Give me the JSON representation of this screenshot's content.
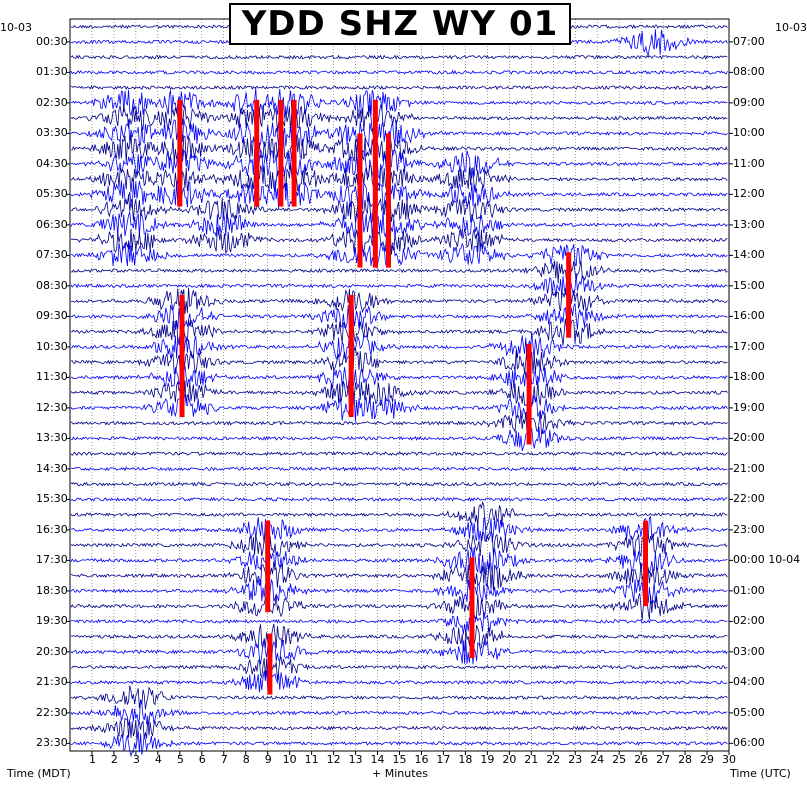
{
  "chart_data": {
    "type": "seismogram",
    "title": "YDD SHZ WY 01",
    "left_date": "10-03",
    "right_date_start": "10-03",
    "right_date_next": "10-04",
    "left_axis_label": "Time (MDT)",
    "right_axis_label": "Time (UTC)",
    "x_axis_label": "+ Minutes",
    "x_range_minutes": [
      0,
      30
    ],
    "x_ticks": [
      "1",
      "2",
      "3",
      "4",
      "5",
      "6",
      "7",
      "8",
      "9",
      "10",
      "11",
      "12",
      "13",
      "14",
      "15",
      "16",
      "17",
      "18",
      "19",
      "20",
      "21",
      "22",
      "23",
      "24",
      "25",
      "26",
      "27",
      "28",
      "29",
      "30"
    ],
    "trace_count": 48,
    "trace_colors": [
      "#00008b",
      "#ff0000",
      "#0000ff"
    ],
    "left_times": [
      "00:30",
      "01:30",
      "02:30",
      "03:30",
      "04:30",
      "05:30",
      "06:30",
      "07:30",
      "08:30",
      "09:30",
      "10:30",
      "11:30",
      "12:30",
      "13:30",
      "14:30",
      "15:30",
      "16:30",
      "17:30",
      "18:30",
      "19:30",
      "20:30",
      "21:30",
      "22:30",
      "23:30"
    ],
    "right_times": [
      "07:00",
      "08:00",
      "09:00",
      "10:00",
      "11:00",
      "12:00",
      "13:00",
      "14:00",
      "15:00",
      "16:00",
      "17:00",
      "18:00",
      "19:00",
      "20:00",
      "21:00",
      "22:00",
      "23:00",
      "00:00 10-04",
      "01:00",
      "02:00",
      "03:00",
      "04:00",
      "05:00",
      "06:00"
    ],
    "events": [
      {
        "minute": 2.7,
        "hour_start": 2.5,
        "hour_end": 7.6,
        "color": "#0000ff"
      },
      {
        "minute": 5.0,
        "hour_start": 2.4,
        "hour_end": 5.9,
        "color": "#ff0000"
      },
      {
        "minute": 8.5,
        "hour_start": 2.4,
        "hour_end": 5.9,
        "color": "#ff0000"
      },
      {
        "minute": 9.6,
        "hour_start": 2.4,
        "hour_end": 5.9,
        "color": "#ff0000"
      },
      {
        "minute": 10.2,
        "hour_start": 2.4,
        "hour_end": 5.9,
        "color": "#ff0000"
      },
      {
        "minute": 7.0,
        "hour_start": 5.7,
        "hour_end": 7.3,
        "color": "#0000ff"
      },
      {
        "minute": 13.2,
        "hour_start": 3.5,
        "hour_end": 7.9,
        "color": "#ff0000"
      },
      {
        "minute": 13.9,
        "hour_start": 2.4,
        "hour_end": 7.9,
        "color": "#ff0000"
      },
      {
        "minute": 14.5,
        "hour_start": 3.5,
        "hour_end": 7.9,
        "color": "#ff0000"
      },
      {
        "minute": 13.6,
        "hour_start": 5.5,
        "hour_end": 7.9,
        "color": "#0000ff"
      },
      {
        "minute": 18.2,
        "hour_start": 4.4,
        "hour_end": 7.6,
        "color": "#0000ff"
      },
      {
        "minute": 22.7,
        "hour_start": 7.4,
        "hour_end": 10.2,
        "color": "#ff0000"
      },
      {
        "minute": 5.1,
        "hour_start": 8.8,
        "hour_end": 12.8,
        "color": "#ff0000"
      },
      {
        "minute": 12.8,
        "hour_start": 8.8,
        "hour_end": 12.8,
        "color": "#ff0000"
      },
      {
        "minute": 20.9,
        "hour_start": 10.4,
        "hour_end": 13.7,
        "color": "#ff0000"
      },
      {
        "minute": 14.0,
        "hour_start": 12.0,
        "hour_end": 12.9,
        "color": "#0000ff"
      },
      {
        "minute": 9.0,
        "hour_start": 16.2,
        "hour_end": 19.2,
        "color": "#ff0000"
      },
      {
        "minute": 19.0,
        "hour_start": 15.9,
        "hour_end": 18.0,
        "color": "#0000ff"
      },
      {
        "minute": 18.3,
        "hour_start": 17.4,
        "hour_end": 20.7,
        "color": "#ff0000"
      },
      {
        "minute": 26.2,
        "hour_start": 16.2,
        "hour_end": 19.0,
        "color": "#ff0000"
      },
      {
        "minute": 9.1,
        "hour_start": 19.9,
        "hour_end": 21.9,
        "color": "#ff0000"
      },
      {
        "minute": 3.0,
        "hour_start": 21.7,
        "hour_end": 23.7,
        "color": "#00008b"
      },
      {
        "minute": 26.5,
        "hour_start": 0.2,
        "hour_end": 0.8,
        "color": "#0000ff"
      }
    ]
  }
}
